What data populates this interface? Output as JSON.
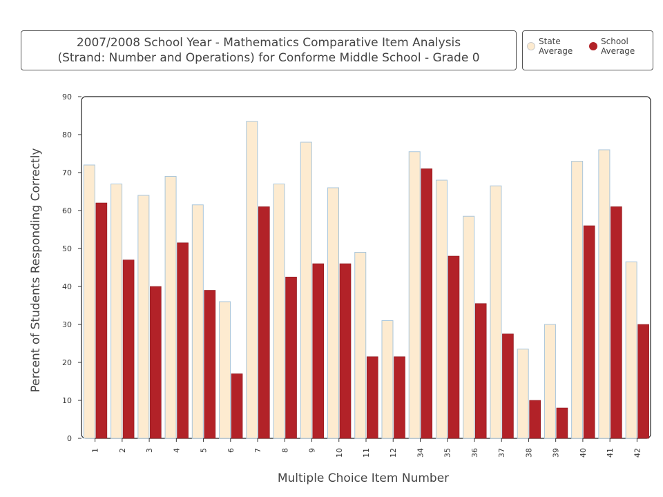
{
  "chart_data": {
    "type": "bar",
    "title": "2007/2008 School Year - Mathematics Comparative Item Analysis",
    "subtitle": "(Strand: Number and Operations) for Conforme Middle School - Grade 0",
    "xlabel": "Multiple Choice Item Number",
    "ylabel": "Percent of Students Responding Correctly",
    "ylim": [
      0,
      90
    ],
    "yticks": [
      "0",
      "10",
      "20",
      "30",
      "40",
      "50",
      "60",
      "70",
      "80",
      "90"
    ],
    "categories": [
      "1",
      "2",
      "3",
      "4",
      "5",
      "6",
      "7",
      "8",
      "9",
      "10",
      "11",
      "12",
      "34",
      "35",
      "36",
      "37",
      "38",
      "39",
      "40",
      "41",
      "42"
    ],
    "series": [
      {
        "name": "State Average",
        "color": "#FDEBD0",
        "values": [
          72,
          67,
          64,
          69,
          61.5,
          36,
          83.5,
          67,
          78,
          66,
          49,
          31,
          75.5,
          68,
          58.5,
          66.5,
          23.5,
          30,
          73,
          76,
          46.5
        ]
      },
      {
        "name": "School Average",
        "color": "#B22228",
        "values": [
          62,
          47,
          40,
          51.5,
          39,
          17,
          61,
          42.5,
          46,
          46,
          21.5,
          21.5,
          71,
          48,
          35.5,
          27.5,
          10,
          8,
          56,
          61,
          30
        ]
      }
    ],
    "grid": false,
    "legend_position": "top-right"
  },
  "legend": {
    "state_label": "State Average",
    "school_label": "School Average",
    "state_color": "#FDEBD0",
    "school_color": "#B22228"
  }
}
